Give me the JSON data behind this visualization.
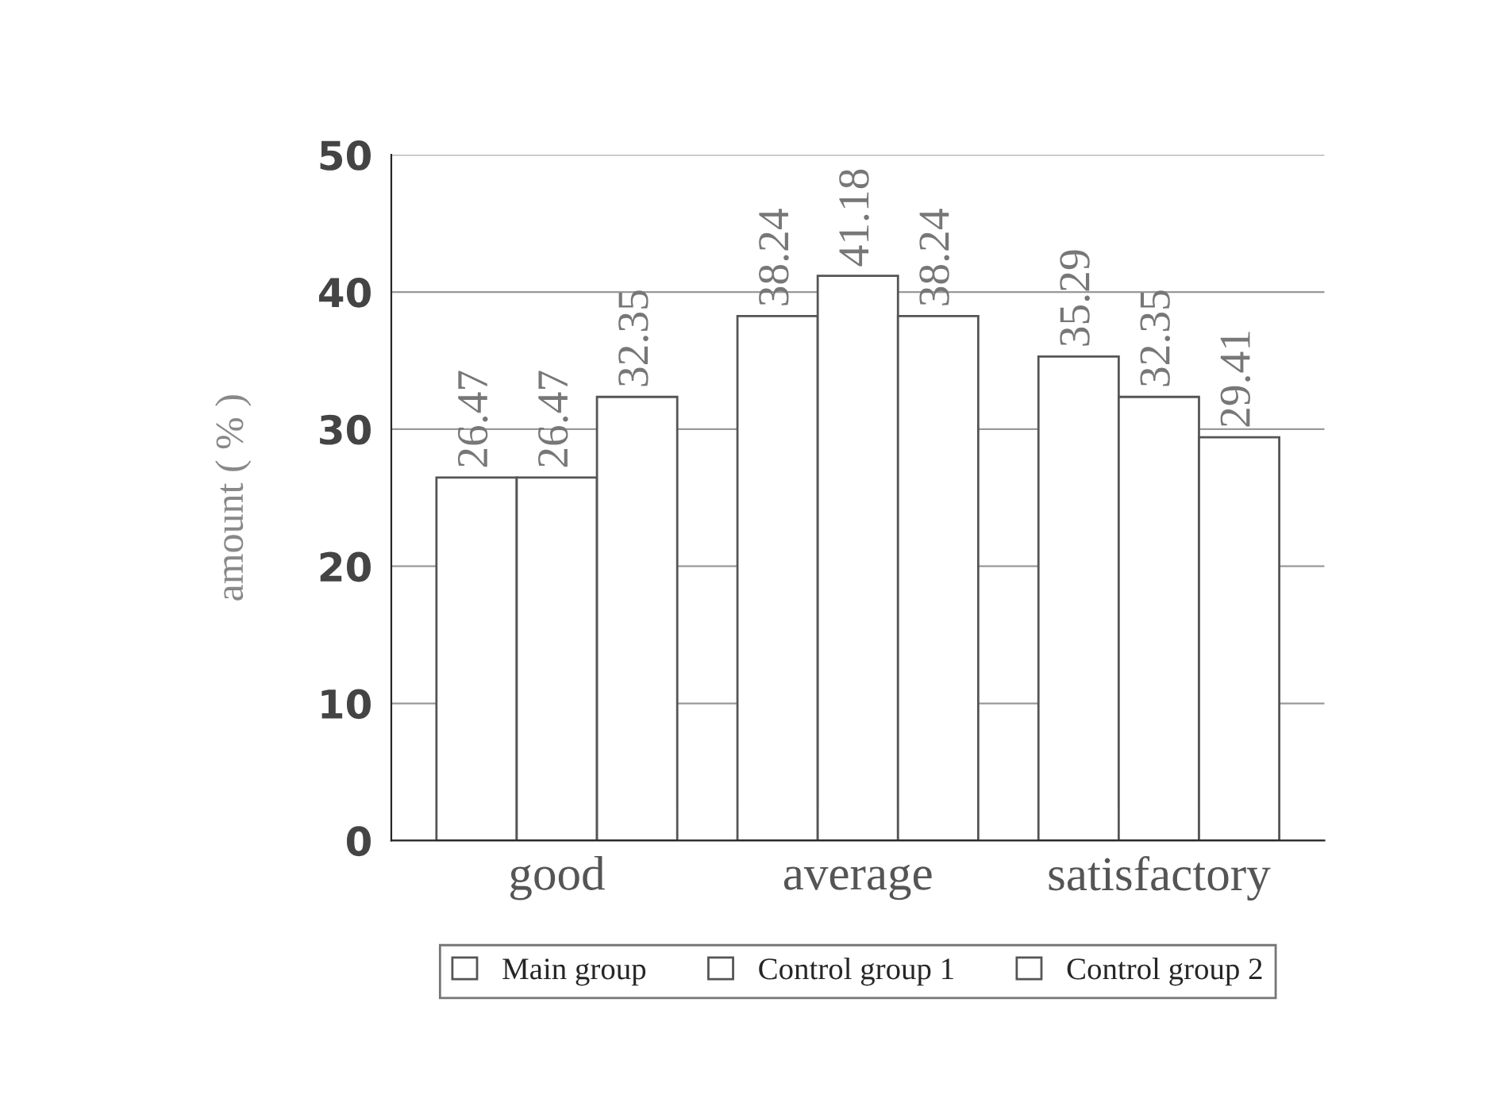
{
  "chart_data": {
    "type": "bar",
    "ylabel": "amount ( % )",
    "categories": [
      "good",
      "average",
      "satisfactory"
    ],
    "series": [
      {
        "name": "Main group",
        "color": "#ffffff",
        "values": [
          26.47,
          38.24,
          35.29
        ]
      },
      {
        "name": "Control group 1",
        "color": "#ffffff",
        "values": [
          26.47,
          41.18,
          32.35
        ]
      },
      {
        "name": "Control group 2",
        "color": "#ffffff",
        "values": [
          32.35,
          38.24,
          29.41
        ]
      }
    ],
    "ylim": [
      0,
      50
    ],
    "yticks": [
      0,
      10,
      20,
      30,
      40,
      50
    ],
    "grid": "y",
    "legend": "bottom",
    "data_labels": true
  }
}
